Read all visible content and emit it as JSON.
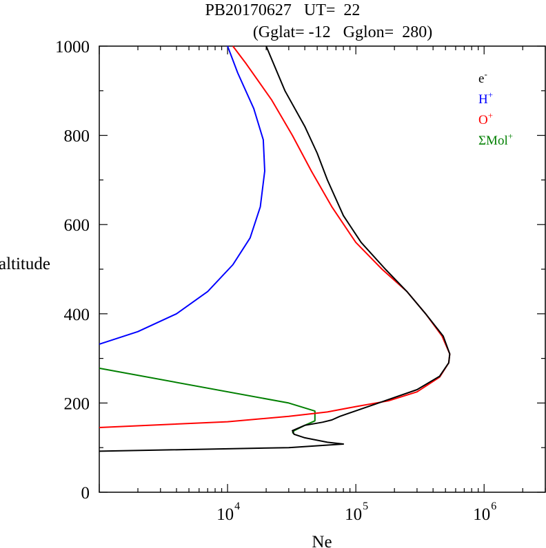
{
  "chart_data": {
    "type": "line",
    "title_line1": "PB20170627   UT=  22",
    "title_line2": "(Gglat= -12   Gglon=  280)",
    "xlabel": "Ne",
    "ylabel": "altitude",
    "xscale": "log",
    "xlim": [
      1000,
      3000000
    ],
    "ylim": [
      0,
      1000
    ],
    "xticks": [
      {
        "base": "10",
        "exp": "4",
        "value": 10000
      },
      {
        "base": "10",
        "exp": "5",
        "value": 100000
      },
      {
        "base": "10",
        "exp": "6",
        "value": 1000000
      }
    ],
    "yticks": [
      "0",
      "200",
      "400",
      "600",
      "800",
      "1000"
    ],
    "legend_position": "top-right",
    "series": [
      {
        "name": "e-",
        "label_base": "e",
        "label_sup": "-",
        "color": "#000000",
        "points": [
          [
            1000,
            92
          ],
          [
            30000,
            100
          ],
          [
            80000,
            108
          ],
          [
            60000,
            112
          ],
          [
            40000,
            122
          ],
          [
            33000,
            130
          ],
          [
            32000,
            138
          ],
          [
            40000,
            150
          ],
          [
            55000,
            157
          ],
          [
            65000,
            162
          ],
          [
            75000,
            170
          ],
          [
            150000,
            200
          ],
          [
            300000,
            230
          ],
          [
            450000,
            260
          ],
          [
            530000,
            290
          ],
          [
            540000,
            310
          ],
          [
            480000,
            350
          ],
          [
            350000,
            400
          ],
          [
            250000,
            450
          ],
          [
            170000,
            500
          ],
          [
            110000,
            560
          ],
          [
            80000,
            620
          ],
          [
            60000,
            700
          ],
          [
            50000,
            760
          ],
          [
            40000,
            820
          ],
          [
            28000,
            900
          ],
          [
            20000,
            1000
          ]
        ]
      },
      {
        "name": "H+",
        "label_base": "H",
        "label_sup": "+",
        "color": "#0000ff",
        "points": [
          [
            1000,
            332
          ],
          [
            2000,
            360
          ],
          [
            4000,
            400
          ],
          [
            7000,
            450
          ],
          [
            11000,
            510
          ],
          [
            15000,
            570
          ],
          [
            18000,
            640
          ],
          [
            19500,
            720
          ],
          [
            19000,
            790
          ],
          [
            16000,
            860
          ],
          [
            12000,
            940
          ],
          [
            10000,
            1000
          ]
        ]
      },
      {
        "name": "O+",
        "label_base": "O",
        "label_sup": "+",
        "color": "#ff0000",
        "points": [
          [
            1000,
            145
          ],
          [
            10000,
            158
          ],
          [
            30000,
            170
          ],
          [
            60000,
            180
          ],
          [
            100000,
            192
          ],
          [
            180000,
            205
          ],
          [
            300000,
            225
          ],
          [
            450000,
            258
          ],
          [
            530000,
            290
          ],
          [
            540000,
            310
          ],
          [
            470000,
            350
          ],
          [
            350000,
            400
          ],
          [
            250000,
            450
          ],
          [
            160000,
            500
          ],
          [
            100000,
            560
          ],
          [
            65000,
            640
          ],
          [
            45000,
            720
          ],
          [
            32000,
            800
          ],
          [
            22000,
            880
          ],
          [
            14000,
            960
          ],
          [
            11000,
            1000
          ]
        ]
      },
      {
        "name": "ΣMol+",
        "label_base": "ΣMol",
        "label_sup": "+",
        "color": "#007f00",
        "points": [
          [
            1000,
            278
          ],
          [
            30000,
            200
          ],
          [
            48000,
            182
          ],
          [
            48000,
            160
          ],
          [
            40000,
            150
          ],
          [
            33000,
            138
          ],
          [
            32000,
            132
          ]
        ]
      }
    ]
  }
}
